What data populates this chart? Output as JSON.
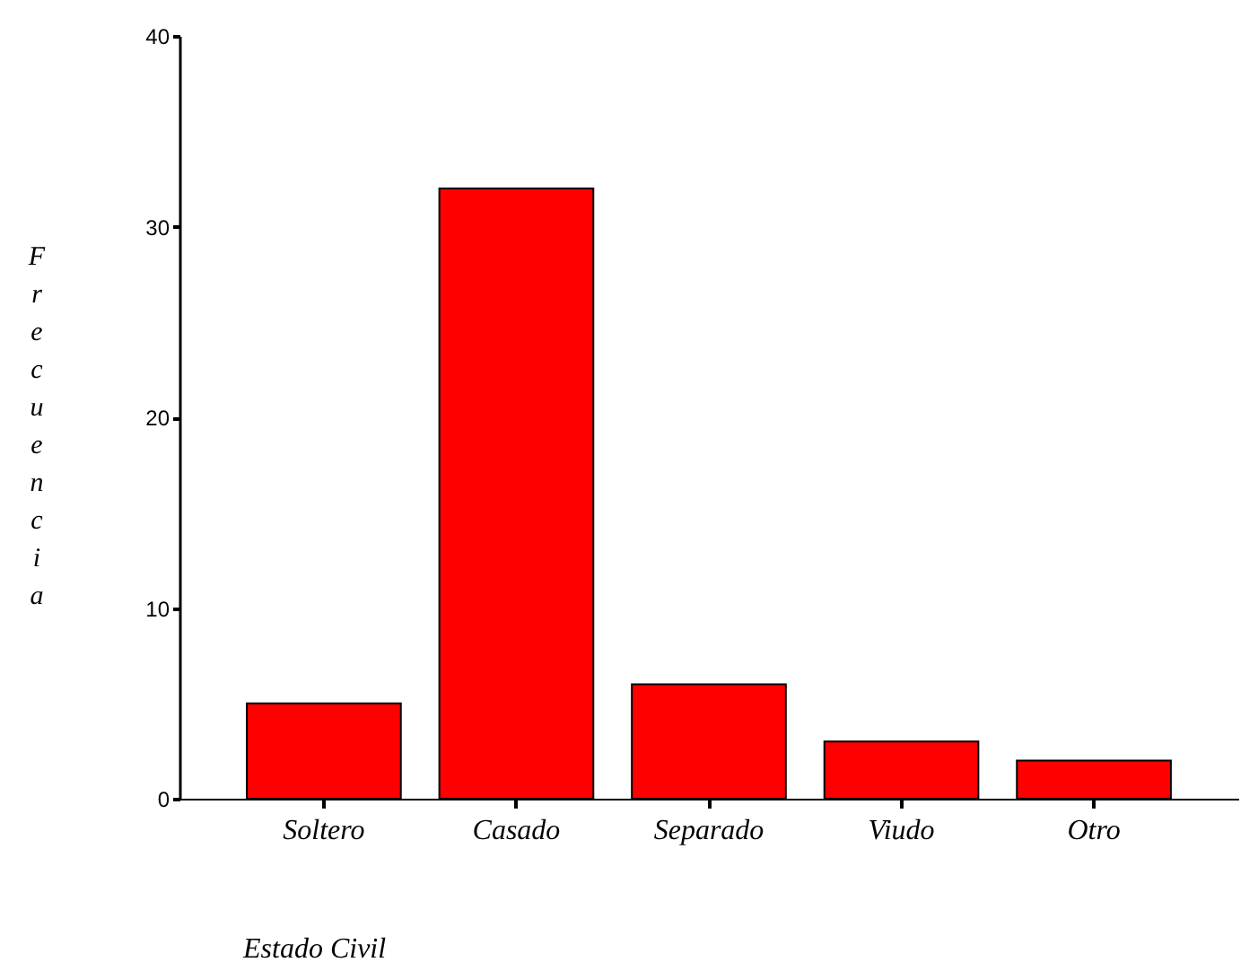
{
  "chart_data": {
    "type": "bar",
    "xlabel": "Estado Civil",
    "ylabel": "Frecuencia",
    "categories": [
      "Soltero",
      "Casado",
      "Separado",
      "Viudo",
      "Otro"
    ],
    "values": [
      5,
      32,
      6,
      3,
      2
    ],
    "color": "#ff0000",
    "ylim": [
      0,
      40
    ],
    "yticks": [
      0,
      10,
      20,
      30,
      40
    ],
    "grid": false
  }
}
